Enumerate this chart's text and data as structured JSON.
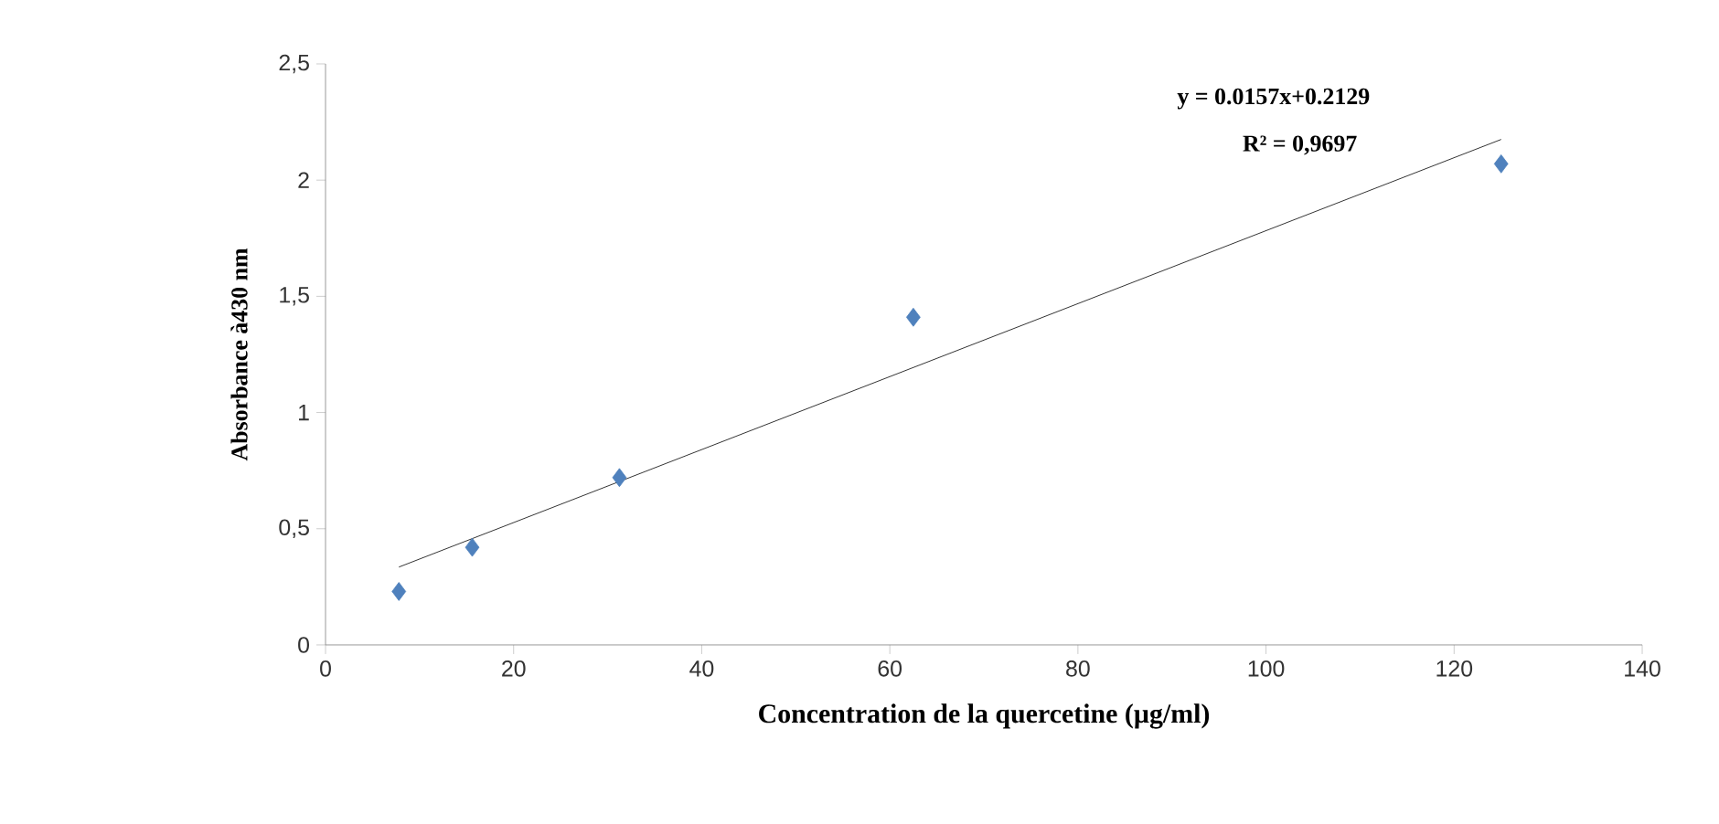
{
  "chart_data": {
    "type": "scatter",
    "xlabel": "Concentration de la quercetine (µg/ml)",
    "ylabel": "Absorbance  à430 nm",
    "marker": "diamond",
    "series": [
      {
        "color": "#4f81bd",
        "x": [
          7.8,
          15.6,
          31.25,
          62.5,
          125
        ],
        "values": [
          0.23,
          0.42,
          0.72,
          1.41,
          2.07
        ]
      },
      {
        "type": "line",
        "color": "#000000",
        "marker": "none",
        "x": [
          7.8,
          125
        ],
        "values": [
          0.335,
          2.175
        ]
      }
    ],
    "annotations": [
      "y = 0.0157x+0.2129",
      "R² = 0,9697"
    ],
    "xlim": [
      0,
      140
    ],
    "xticks": [
      0,
      20,
      40,
      60,
      80,
      100,
      120,
      140
    ],
    "ylim": [
      0,
      2.5
    ],
    "yticks": [
      0,
      {
        "value": 0.5,
        "label": "0,5"
      },
      1,
      {
        "value": 1.5,
        "label": "1,5"
      },
      2,
      {
        "value": 2.5,
        "label": "2,5"
      }
    ]
  }
}
